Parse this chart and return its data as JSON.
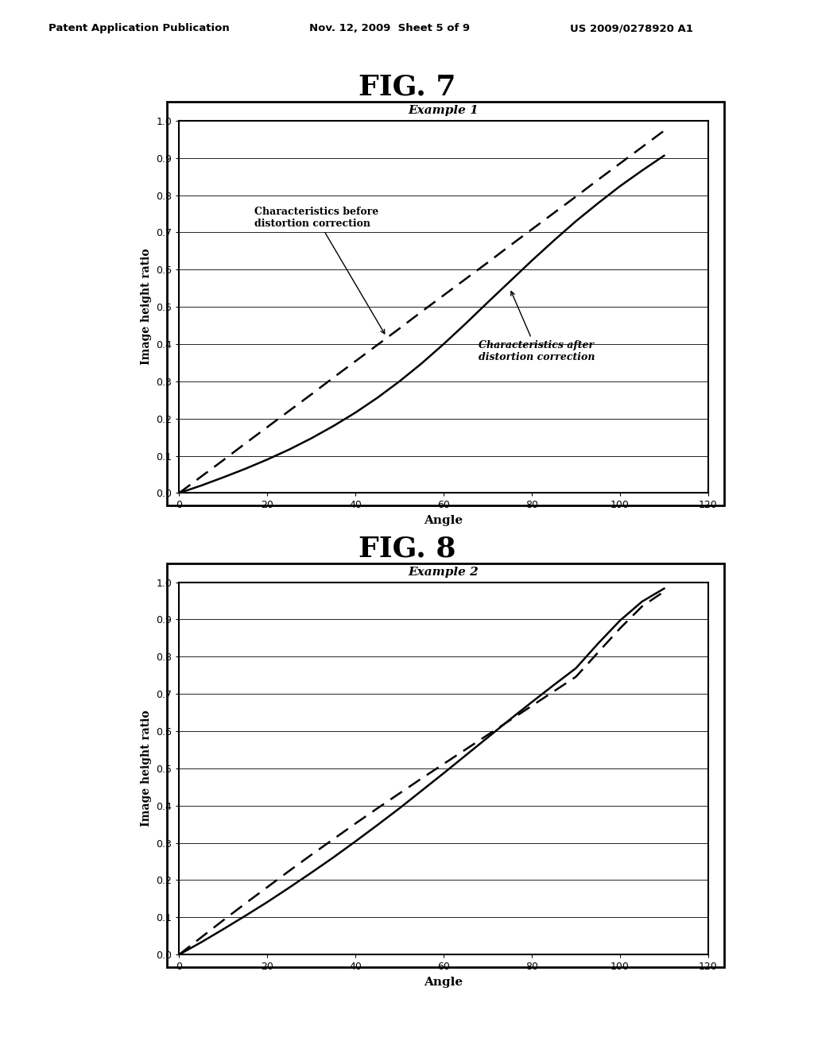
{
  "header_left": "Patent Application Publication",
  "header_mid": "Nov. 12, 2009  Sheet 5 of 9",
  "header_right": "US 2009/0278920 A1",
  "fig7_title": "FIG. 7",
  "fig8_title": "FIG. 8",
  "chart1_title": "Example 1",
  "chart2_title": "Example 2",
  "xlabel": "Angle",
  "ylabel": "Image height ratio",
  "xmin": 0,
  "xmax": 120,
  "ymin": 0,
  "ymax": 1,
  "xticks": [
    0,
    20,
    40,
    60,
    80,
    100,
    120
  ],
  "yticks": [
    0,
    0.1,
    0.2,
    0.3,
    0.4,
    0.5,
    0.6,
    0.7,
    0.8,
    0.9,
    1
  ],
  "label_before": "Characteristics before\ndistortion correction",
  "label_after": "Characteristics after\ndistortion correction",
  "fig7_before_x": [
    0,
    5,
    10,
    15,
    20,
    25,
    30,
    35,
    40,
    45,
    50,
    55,
    60,
    65,
    70,
    75,
    80,
    85,
    90,
    95,
    100,
    105,
    110
  ],
  "fig7_before_y": [
    0,
    0.044,
    0.088,
    0.133,
    0.177,
    0.221,
    0.265,
    0.31,
    0.354,
    0.398,
    0.442,
    0.487,
    0.531,
    0.575,
    0.619,
    0.664,
    0.708,
    0.752,
    0.796,
    0.841,
    0.885,
    0.929,
    0.973
  ],
  "fig7_after_x": [
    0,
    5,
    10,
    15,
    20,
    25,
    30,
    35,
    40,
    45,
    50,
    55,
    60,
    65,
    70,
    75,
    80,
    85,
    90,
    95,
    100,
    105,
    110
  ],
  "fig7_after_y": [
    0,
    0.02,
    0.042,
    0.065,
    0.09,
    0.117,
    0.147,
    0.18,
    0.216,
    0.256,
    0.3,
    0.348,
    0.4,
    0.455,
    0.512,
    0.568,
    0.624,
    0.678,
    0.73,
    0.778,
    0.824,
    0.866,
    0.906
  ],
  "fig8_before_x": [
    0,
    5,
    10,
    15,
    20,
    25,
    30,
    35,
    40,
    45,
    50,
    55,
    60,
    65,
    70,
    75,
    80,
    85,
    90,
    95,
    100,
    105,
    110
  ],
  "fig8_before_y": [
    0,
    0.046,
    0.092,
    0.137,
    0.181,
    0.225,
    0.268,
    0.31,
    0.352,
    0.393,
    0.433,
    0.473,
    0.512,
    0.551,
    0.59,
    0.629,
    0.668,
    0.707,
    0.746,
    0.811,
    0.876,
    0.935,
    0.975
  ],
  "fig8_after_x": [
    0,
    5,
    10,
    15,
    20,
    25,
    30,
    35,
    40,
    45,
    50,
    55,
    60,
    65,
    70,
    75,
    80,
    85,
    90,
    95,
    100,
    105,
    110
  ],
  "fig8_after_y": [
    0,
    0.033,
    0.068,
    0.104,
    0.141,
    0.18,
    0.22,
    0.261,
    0.304,
    0.348,
    0.393,
    0.44,
    0.487,
    0.535,
    0.583,
    0.631,
    0.678,
    0.724,
    0.769,
    0.835,
    0.897,
    0.948,
    0.983
  ],
  "line_color": "#000000",
  "bg_color": "#ffffff",
  "chart_bg": "#ffffff"
}
